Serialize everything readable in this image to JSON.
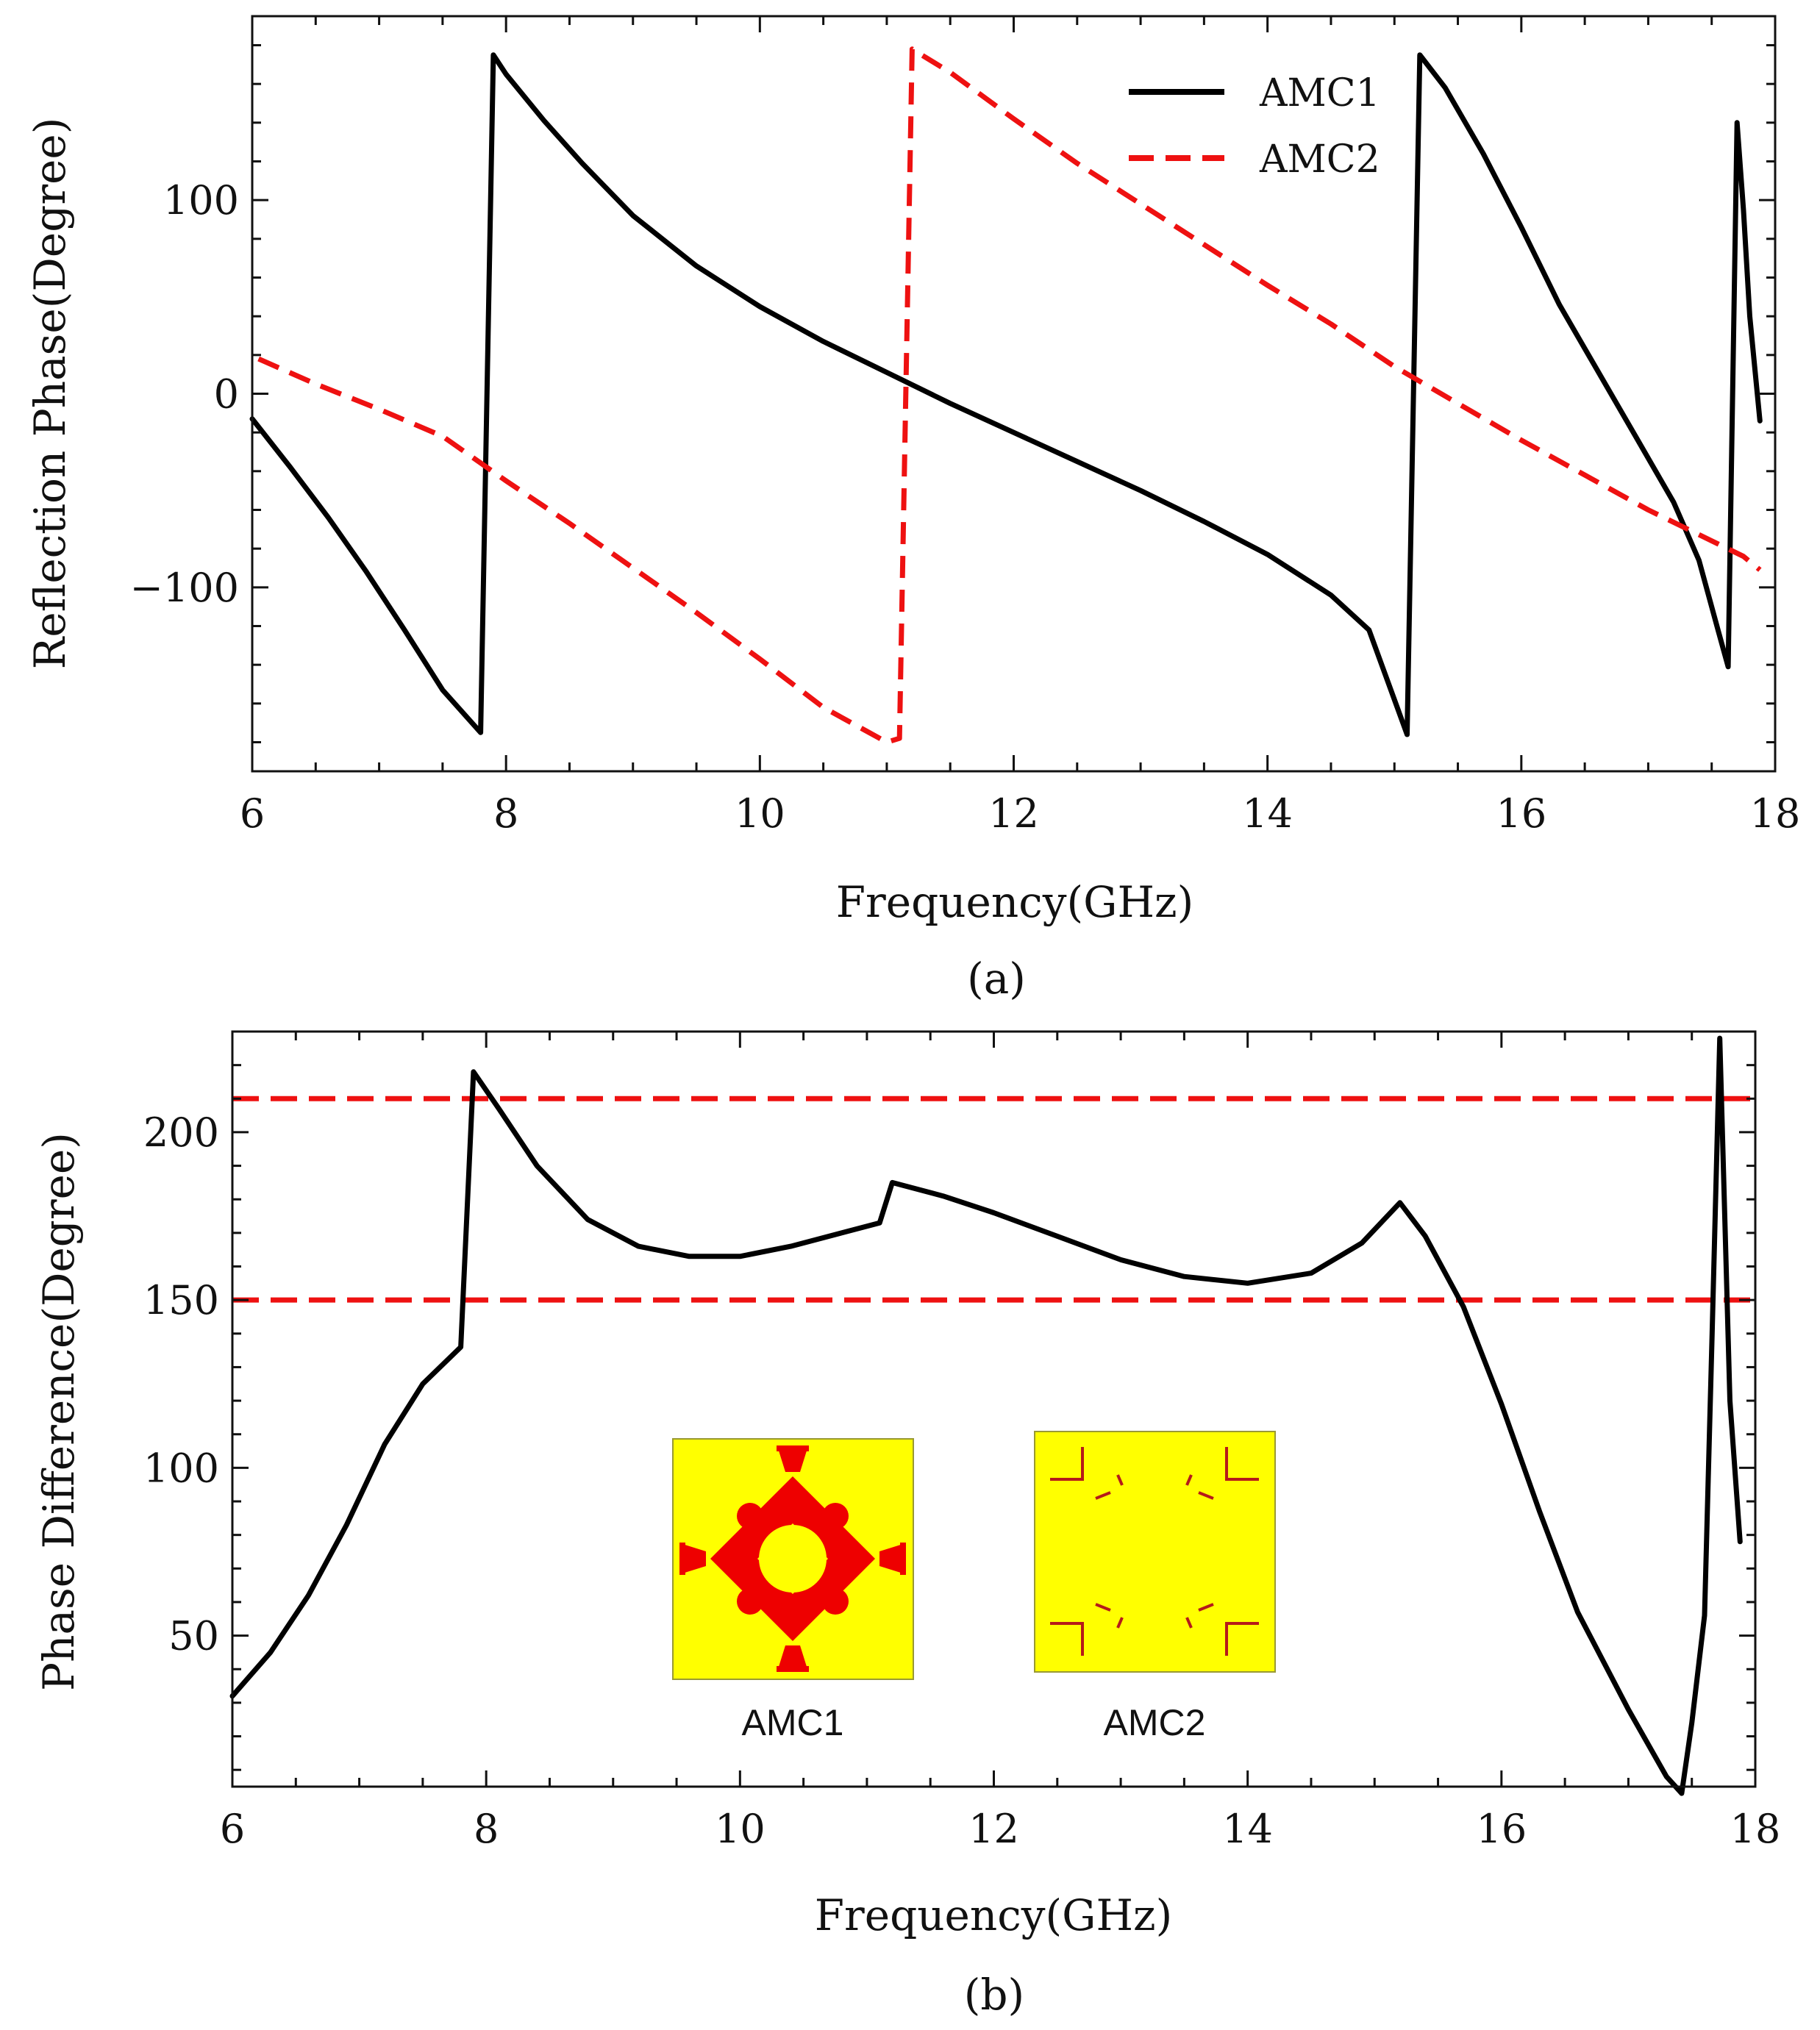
{
  "colors": {
    "amc1": "#000000",
    "amc2": "#ee1111",
    "threshold": "#ee1111",
    "inset_bg": "#ffff00",
    "inset_pattern": "#ee0000",
    "inset_pattern2": "#b51a1a"
  },
  "chart_data": [
    {
      "type": "line",
      "caption": "(a)",
      "xlabel": "Frequency(GHz)",
      "ylabel": "Reflection Phase(Degree)",
      "xlim": [
        6,
        18
      ],
      "ylim": [
        -195,
        195
      ],
      "xticks": [
        6,
        8,
        10,
        12,
        14,
        16,
        18
      ],
      "xtick_labels": [
        "6",
        "8",
        "10",
        "12",
        "14",
        "16",
        "18"
      ],
      "yticks": [
        -100,
        0,
        100
      ],
      "ytick_labels": [
        "−100",
        "0",
        "100"
      ],
      "grid": false,
      "legend": "top-right",
      "series": [
        {
          "name": "AMC1",
          "style": "solid",
          "x": [
            6.0,
            6.3,
            6.6,
            6.9,
            7.2,
            7.5,
            7.8,
            7.9,
            8.0,
            8.3,
            8.6,
            9.0,
            9.5,
            10.0,
            10.5,
            11.0,
            11.5,
            12.0,
            12.5,
            13.0,
            13.5,
            14.0,
            14.5,
            14.8,
            15.1,
            15.2,
            15.4,
            15.7,
            16.0,
            16.3,
            16.6,
            16.9,
            17.2,
            17.4,
            17.55,
            17.63,
            17.7,
            17.75,
            17.8,
            17.88
          ],
          "y": [
            -13,
            -38,
            -64,
            -92,
            -122,
            -153,
            -175,
            175,
            165,
            141,
            119,
            92,
            66,
            45,
            27,
            11,
            -5,
            -20,
            -35,
            -50,
            -66,
            -83,
            -104,
            -122,
            -176,
            175,
            158,
            124,
            86,
            46,
            12,
            -22,
            -56,
            -86,
            -122,
            -141,
            140,
            95,
            40,
            -14
          ]
        },
        {
          "name": "AMC2",
          "style": "dashed",
          "x": [
            6.05,
            6.5,
            7.0,
            7.5,
            8.0,
            8.5,
            9.0,
            9.5,
            10.0,
            10.5,
            11.0,
            11.1,
            11.2,
            11.5,
            12.0,
            12.5,
            13.0,
            13.5,
            14.0,
            14.5,
            15.0,
            15.5,
            16.0,
            16.5,
            17.0,
            17.5,
            17.75,
            17.88
          ],
          "y": [
            18,
            5,
            -8,
            -22,
            -45,
            -67,
            -90,
            -113,
            -137,
            -162,
            -180,
            -178,
            178,
            166,
            142,
            119,
            98,
            77,
            56,
            36,
            14,
            -5,
            -24,
            -42,
            -60,
            -76,
            -84,
            -91
          ]
        }
      ]
    },
    {
      "type": "line",
      "caption": "(b)",
      "xlabel": "Frequency(GHz)",
      "ylabel": "Phase Difference(Degree)",
      "xlim": [
        6,
        18
      ],
      "ylim": [
        5,
        230
      ],
      "xticks": [
        6,
        8,
        10,
        12,
        14,
        16,
        18
      ],
      "xtick_labels": [
        "6",
        "8",
        "10",
        "12",
        "14",
        "16",
        "18"
      ],
      "yticks": [
        50,
        100,
        150,
        200
      ],
      "ytick_labels": [
        "50",
        "100",
        "150",
        "200"
      ],
      "grid": false,
      "legend": "none",
      "thresholds": [
        150,
        210
      ],
      "series": [
        {
          "style": "solid",
          "x": [
            6.0,
            6.3,
            6.6,
            6.9,
            7.2,
            7.5,
            7.8,
            7.9,
            8.1,
            8.4,
            8.8,
            9.2,
            9.6,
            10.0,
            10.4,
            10.8,
            11.1,
            11.2,
            11.6,
            12.0,
            12.5,
            13.0,
            13.5,
            14.0,
            14.5,
            14.9,
            15.2,
            15.4,
            15.7,
            16.0,
            16.3,
            16.6,
            17.0,
            17.3,
            17.42,
            17.5,
            17.6,
            17.66,
            17.72,
            17.8,
            17.88
          ],
          "y": [
            32,
            45,
            62,
            83,
            107,
            125,
            136,
            218,
            207,
            190,
            174,
            166,
            163,
            163,
            166,
            170,
            173,
            185,
            181,
            176,
            169,
            162,
            157,
            155,
            158,
            167,
            179,
            169,
            148,
            119,
            87,
            57,
            28,
            8,
            3,
            24,
            56,
            140,
            228,
            120,
            78
          ]
        }
      ],
      "insets": [
        {
          "label": "AMC1"
        },
        {
          "label": "AMC2"
        }
      ]
    }
  ]
}
